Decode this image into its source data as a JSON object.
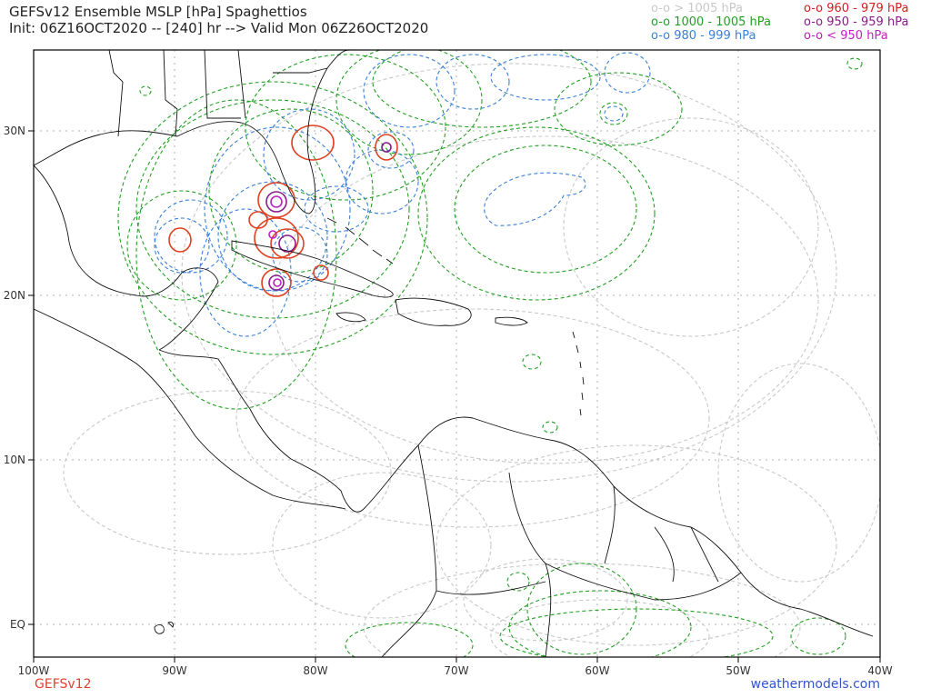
{
  "header": {
    "title_line1": "GEFSv12 Ensemble MSLP [hPa] Spaghettios",
    "title_line2": "Init: 06Z16OCT2020 -- [240] hr --> Valid Mon 06Z26OCT2020"
  },
  "legend": {
    "left": [
      {
        "marker": "o-o",
        "label": "> 1005 hPa",
        "color": "#c8c8c8"
      },
      {
        "marker": "o-o",
        "label": "1000 - 1005 hPa",
        "color": "#22a022"
      },
      {
        "marker": "o-o",
        "label": "980 - 999 hPa",
        "color": "#3a7fd8"
      }
    ],
    "right": [
      {
        "marker": "o-o",
        "label": "960 - 979 hPa",
        "color": "#d42020"
      },
      {
        "marker": "o-o",
        "label": "950 - 959 hPa",
        "color": "#8b1a8b"
      },
      {
        "marker": "o-o",
        "label": "< 950 hPa",
        "color": "#c020c0"
      }
    ]
  },
  "axes": {
    "lon_labels": [
      "100W",
      "90W",
      "80W",
      "70W",
      "60W",
      "50W",
      "40W"
    ],
    "lat_labels": [
      "30N",
      "20N",
      "10N",
      "EQ"
    ]
  },
  "footer": {
    "model": "GEFSv12",
    "site": "weathermodels.com"
  },
  "colors": {
    "gray": "#c8c8c8",
    "green": "#22a022",
    "blue": "#3a7fd8",
    "red": "#d42020",
    "purple": "#8b1a8b",
    "magenta": "#c020c0"
  }
}
